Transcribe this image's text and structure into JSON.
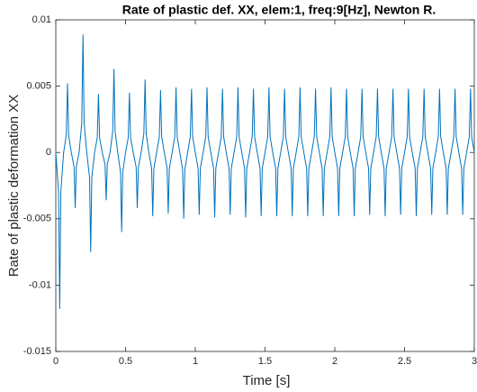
{
  "chart_data": {
    "type": "line",
    "title": "Rate of plastic def. XX, elem:1, freq:9[Hz], Newton R.",
    "x_label": "Time [s]",
    "y_label": "Rate of plastic deformation XX",
    "xlim": [
      0,
      3
    ],
    "ylim": [
      -0.015,
      0.01
    ],
    "xticks": [
      0,
      0.5,
      1,
      1.5,
      2,
      2.5,
      3
    ],
    "yticks": [
      -0.015,
      -0.01,
      -0.005,
      0,
      0.005,
      0.01
    ],
    "x": [
      0,
      0.02,
      0.028,
      0.036,
      0.056,
      0.075,
      0.084,
      0.092,
      0.111,
      0.131,
      0.139,
      0.147,
      0.167,
      0.186,
      0.195,
      0.203,
      0.222,
      0.242,
      0.25,
      0.258,
      0.278,
      0.297,
      0.306,
      0.314,
      0.333,
      0.353,
      0.361,
      0.369,
      0.389,
      0.408,
      0.417,
      0.425,
      0.444,
      0.464,
      0.472,
      0.48,
      0.5,
      0.519,
      0.528,
      0.536,
      0.555,
      0.576,
      0.584,
      0.592,
      0.612,
      0.631,
      0.64,
      0.648,
      0.667,
      0.687,
      0.695,
      0.703,
      0.723,
      0.742,
      0.751,
      0.759,
      0.778,
      0.798,
      0.806,
      0.814,
      0.834,
      0.853,
      0.862,
      0.87,
      0.889,
      0.909,
      0.917,
      0.925,
      0.945,
      0.964,
      0.973,
      0.981,
      1.0,
      1.02,
      1.028,
      1.036,
      1.056,
      1.075,
      1.084,
      1.092,
      1.111,
      1.131,
      1.139,
      1.147,
      1.167,
      1.186,
      1.195,
      1.203,
      1.222,
      1.242,
      1.25,
      1.258,
      1.278,
      1.297,
      1.306,
      1.314,
      1.333,
      1.353,
      1.361,
      1.369,
      1.389,
      1.408,
      1.417,
      1.425,
      1.444,
      1.464,
      1.472,
      1.48,
      1.5,
      1.519,
      1.528,
      1.536,
      1.555,
      1.576,
      1.584,
      1.592,
      1.612,
      1.631,
      1.64,
      1.648,
      1.667,
      1.687,
      1.695,
      1.703,
      1.723,
      1.742,
      1.751,
      1.759,
      1.778,
      1.798,
      1.806,
      1.814,
      1.834,
      1.853,
      1.862,
      1.87,
      1.889,
      1.909,
      1.917,
      1.925,
      1.945,
      1.964,
      1.973,
      1.981,
      2.0,
      2.02,
      2.028,
      2.036,
      2.056,
      2.075,
      2.084,
      2.092,
      2.111,
      2.131,
      2.139,
      2.147,
      2.167,
      2.186,
      2.195,
      2.203,
      2.222,
      2.242,
      2.25,
      2.258,
      2.278,
      2.297,
      2.306,
      2.314,
      2.333,
      2.353,
      2.361,
      2.369,
      2.389,
      2.408,
      2.417,
      2.425,
      2.444,
      2.464,
      2.472,
      2.48,
      2.5,
      2.519,
      2.528,
      2.536,
      2.555,
      2.576,
      2.584,
      2.592,
      2.612,
      2.631,
      2.64,
      2.648,
      2.667,
      2.687,
      2.695,
      2.703,
      2.723,
      2.742,
      2.751,
      2.759,
      2.778,
      2.798,
      2.806,
      2.814,
      2.834,
      2.853,
      2.862,
      2.87,
      2.889,
      2.909,
      2.917,
      2.925,
      2.945,
      2.964,
      2.973,
      2.981,
      3.0
    ],
    "series": [
      {
        "color": "#0072bd",
        "values": [
          0,
          -0.003,
          -0.0118,
          -0.003,
          0,
          0.0013,
          0.0052,
          0.0013,
          0,
          -0.0011,
          -0.0042,
          -0.0011,
          0,
          0.0022,
          0.0089,
          0.0022,
          0,
          -0.0019,
          -0.0075,
          -0.0019,
          0,
          0.0011,
          0.0044,
          0.0011,
          0,
          -0.0009,
          -0.0036,
          -0.0009,
          0,
          0.0016,
          0.0063,
          0.0016,
          0,
          -0.0015,
          -0.006,
          -0.0015,
          0,
          0.0011,
          0.0045,
          0.0011,
          0,
          -0.0011,
          -0.0042,
          -0.0011,
          0,
          0.0014,
          0.0055,
          0.0014,
          0,
          -0.0012,
          -0.0048,
          -0.0012,
          0,
          0.0012,
          0.0047,
          0.0012,
          0,
          -0.0012,
          -0.0046,
          -0.0012,
          0,
          0.0012,
          0.0049,
          0.0012,
          0,
          -0.0013,
          -0.005,
          -0.0013,
          0,
          0.0012,
          0.0048,
          0.0012,
          0,
          -0.0012,
          -0.0047,
          -0.0012,
          0,
          0.0012,
          0.0049,
          0.0012,
          0,
          -0.0012,
          -0.0049,
          -0.0012,
          0,
          0.0012,
          0.0048,
          0.0012,
          0,
          -0.0012,
          -0.0047,
          -0.0012,
          0,
          0.0012,
          0.0049,
          0.0012,
          0,
          -0.0012,
          -0.0049,
          -0.0012,
          0,
          0.0012,
          0.0048,
          0.0012,
          0,
          -0.0012,
          -0.0048,
          -0.0012,
          0,
          0.0012,
          0.0049,
          0.0012,
          0,
          -0.0012,
          -0.0048,
          -0.0012,
          0,
          0.0012,
          0.0048,
          0.0012,
          0,
          -0.0012,
          -0.0048,
          -0.0012,
          0,
          0.0012,
          0.0049,
          0.0012,
          0,
          -0.0012,
          -0.0048,
          -0.0012,
          0,
          0.0012,
          0.0048,
          0.0012,
          0,
          -0.0012,
          -0.0048,
          -0.0012,
          0,
          0.0012,
          0.0049,
          0.0012,
          0,
          -0.0012,
          -0.0048,
          -0.0012,
          0,
          0.0012,
          0.0048,
          0.0012,
          0,
          -0.0012,
          -0.0048,
          -0.0012,
          0,
          0.0012,
          0.0048,
          0.0012,
          0,
          -0.0012,
          -0.0047,
          -0.0012,
          0,
          0.0012,
          0.0048,
          0.0012,
          0,
          -0.0012,
          -0.0048,
          -0.0012,
          0,
          0.0012,
          0.0048,
          0.0012,
          0,
          -0.0012,
          -0.0047,
          -0.0012,
          0,
          0.0012,
          0.0048,
          0.0012,
          0,
          -0.0012,
          -0.0048,
          -0.0012,
          0,
          0.0012,
          0.0048,
          0.0012,
          0,
          -0.0012,
          -0.0047,
          -0.0012,
          0,
          0.0012,
          0.0048,
          0.0012,
          0,
          -0.0012,
          -0.0047,
          -0.0012,
          0,
          0.0012,
          0.0048,
          0.0012,
          0,
          -0.0012,
          -0.0047,
          -0.0012,
          0,
          0.0012,
          0.0048,
          0.0012,
          0
        ]
      }
    ],
    "grid": false
  }
}
